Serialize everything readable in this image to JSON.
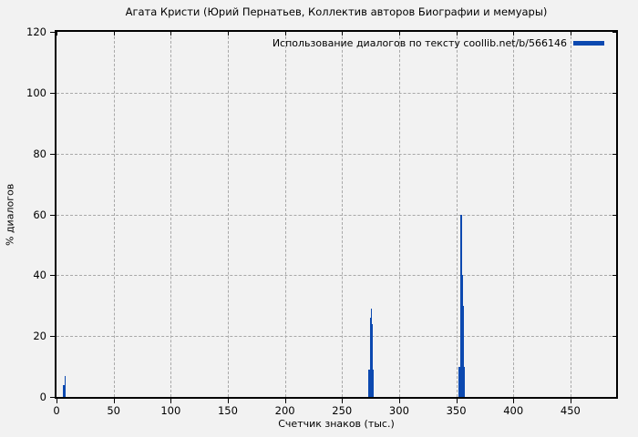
{
  "chart_data": {
    "type": "bar",
    "title": "Агата Кристи (Юрий Пернатьев, Коллектив авторов Биографии и мемуары)",
    "legend": "Использование диалогов по тексту coollib.net/b/566146",
    "xlabel": "Счетчик знаков (тыс.)",
    "ylabel": "% диалогов",
    "xlim": [
      0,
      490
    ],
    "ylim": [
      0,
      120
    ],
    "x_ticks": [
      0,
      50,
      100,
      150,
      200,
      250,
      300,
      350,
      400,
      450
    ],
    "y_ticks": [
      0,
      20,
      40,
      60,
      80,
      100,
      120
    ],
    "grid": true,
    "legend_position": "top-right-inside",
    "bar_color": "#0c49b0",
    "background_color": "#f2f2f2",
    "bars": [
      {
        "x": 7.0,
        "value": 4,
        "width": 2.4
      },
      {
        "x": 7.2,
        "value": 7,
        "width": 0.8
      },
      {
        "x": 275.5,
        "value": 9,
        "width": 4.8
      },
      {
        "x": 275.5,
        "value": 24,
        "width": 2.4
      },
      {
        "x": 275.7,
        "value": 26,
        "width": 1.6
      },
      {
        "x": 275.8,
        "value": 29,
        "width": 0.8
      },
      {
        "x": 354.8,
        "value": 10,
        "width": 5.6
      },
      {
        "x": 354.8,
        "value": 30,
        "width": 3.2
      },
      {
        "x": 354.5,
        "value": 40,
        "width": 2.4
      },
      {
        "x": 354.3,
        "value": 60,
        "width": 1.6
      }
    ]
  }
}
